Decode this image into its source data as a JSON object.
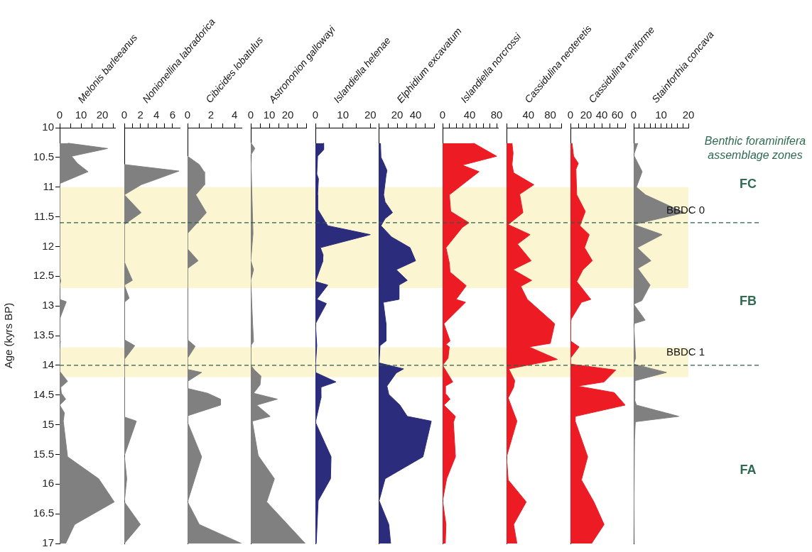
{
  "chart_data": [
    {
      "type": "area",
      "orientation": "horizontal",
      "title": "Melonis barleeanus",
      "ylabel": "Age (kyrs BP)",
      "color": "#808080",
      "x": [
        10.26,
        10.35,
        10.48,
        10.6,
        10.74,
        10.94,
        12.5,
        12.58,
        12.65,
        12.89,
        12.93,
        13.22,
        13.58,
        13.6,
        13.63,
        14.1,
        14.27,
        14.37,
        14.47,
        14.57,
        14.67,
        14.8,
        14.94,
        15.54,
        15.91,
        16.3,
        16.68,
        17.0
      ],
      "values": [
        3.9,
        22.5,
        5.6,
        8.3,
        13.3,
        0,
        0,
        0.5,
        0,
        0,
        3.1,
        0,
        0,
        0.4,
        0,
        0,
        3.7,
        0.5,
        0.8,
        2.8,
        0,
        2.2,
        1.7,
        3.7,
        18.3,
        25.6,
        7,
        2.8
      ],
      "xlim": [
        0,
        26
      ],
      "xticks": [
        0,
        {
          "value": 5,
          "label": null
        },
        10,
        {
          "value": 15,
          "label": null
        },
        20,
        {
          "value": 25,
          "label": null
        }
      ],
      "ylim": [
        17,
        10
      ],
      "yticks": [
        10,
        10.5,
        11,
        11.5,
        12,
        12.5,
        13,
        13.5,
        14,
        14.5,
        15,
        15.5,
        16,
        16.5,
        17
      ],
      "bands": [
        {
          "axis": "y",
          "from": 11,
          "to": 12.7,
          "color": "#fcf5d2"
        },
        {
          "axis": "y",
          "from": 13.7,
          "to": 14.2,
          "color": "#fcf5d2"
        }
      ],
      "ref_lines": [
        {
          "axis": "y",
          "value": 11.6,
          "color": "#2e5e4e",
          "line_style": "dashed"
        },
        {
          "axis": "y",
          "value": 14,
          "color": "#2e5e4e",
          "line_style": "dashed"
        }
      ]
    },
    {
      "type": "area",
      "orientation": "horizontal",
      "title": "Nonionellina labradorica",
      "color": "#808080",
      "tick_labels": "x",
      "x": [
        10.62,
        10.73,
        10.96,
        11.13,
        11.43,
        11.63,
        12.26,
        12.57,
        12.65,
        12.87,
        12.94,
        13.57,
        13.67,
        13.9,
        14.87,
        14.94,
        15.52,
        15.91,
        16.3,
        16.68,
        17.0
      ],
      "values": [
        0,
        6.8,
        2.1,
        0,
        2.1,
        0,
        0,
        1.0,
        0,
        0.6,
        0,
        0,
        1.3,
        0,
        0,
        1.5,
        0,
        0.3,
        0,
        2.0,
        0
      ],
      "xlim": [
        0,
        6.9
      ],
      "xticks": [
        0,
        {
          "value": 1,
          "label": null
        },
        2,
        {
          "value": 3,
          "label": null
        },
        4,
        {
          "value": 5,
          "label": null
        },
        6
      ],
      "ylim": [
        17,
        10
      ],
      "bands": [
        {
          "axis": "y",
          "from": 11,
          "to": 12.7,
          "color": "#fcf5d2"
        },
        {
          "axis": "y",
          "from": 13.7,
          "to": 14.2,
          "color": "#fcf5d2"
        }
      ],
      "ref_lines": [
        {
          "axis": "y",
          "value": 11.6,
          "color": "#2e5e4e",
          "line_style": "dashed"
        },
        {
          "axis": "y",
          "value": 14,
          "color": "#2e5e4e",
          "line_style": "dashed"
        }
      ]
    },
    {
      "type": "area",
      "orientation": "horizontal",
      "title": "Cibicides lobatulus",
      "color": "#808080",
      "tick_labels": "x",
      "x": [
        10.48,
        10.62,
        10.74,
        10.96,
        11.13,
        11.43,
        11.78,
        12.04,
        12.24,
        12.37,
        13.57,
        13.68,
        13.88,
        14.07,
        14.12,
        14.27,
        14.39,
        14.47,
        14.57,
        14.67,
        14.85,
        14.96,
        15.54,
        16.3,
        16.68,
        17.0
      ],
      "values": [
        0,
        1.0,
        1.4,
        1.45,
        0.7,
        1.6,
        0,
        0,
        0.9,
        0,
        0,
        0.65,
        0,
        0,
        1.2,
        0,
        0,
        1.7,
        2.8,
        2.8,
        0,
        0,
        1.2,
        0,
        1.0,
        4.6
      ],
      "xlim": [
        0,
        4.6
      ],
      "xticks": [
        0,
        {
          "value": 1,
          "label": null
        },
        2,
        {
          "value": 3,
          "label": null
        },
        4
      ],
      "ylim": [
        17,
        10
      ],
      "bands": [
        {
          "axis": "y",
          "from": 11,
          "to": 12.7,
          "color": "#fcf5d2"
        },
        {
          "axis": "y",
          "from": 13.7,
          "to": 14.2,
          "color": "#fcf5d2"
        }
      ],
      "ref_lines": [
        {
          "axis": "y",
          "value": 11.6,
          "color": "#2e5e4e",
          "line_style": "dashed"
        },
        {
          "axis": "y",
          "value": 14,
          "color": "#2e5e4e",
          "line_style": "dashed"
        }
      ]
    },
    {
      "type": "area",
      "orientation": "horizontal",
      "title": "Astrononion gallowayi",
      "color": "#808080",
      "tick_labels": "x",
      "x": [
        10.25,
        10.35,
        10.46,
        11.78,
        12.24,
        12.39,
        12.57,
        13.3,
        13.6,
        13.67,
        14.0,
        14.08,
        14.18,
        14.33,
        14.47,
        14.57,
        14.67,
        14.86,
        14.94,
        15.52,
        15.91,
        16.3,
        17.0
      ],
      "values": [
        0,
        2.2,
        0,
        1.2,
        0,
        1.5,
        0,
        1,
        1.5,
        0,
        0,
        2,
        5.5,
        5,
        1.5,
        14.4,
        3.2,
        10.5,
        0.8,
        4,
        12.8,
        8.6,
        29.5
      ],
      "xlim": [
        0,
        30
      ],
      "xticks": [
        0,
        {
          "value": 5,
          "label": null
        },
        10,
        {
          "value": 15,
          "label": null
        },
        20,
        {
          "value": 25,
          "label": null
        },
        {
          "value": 30,
          "label": null
        }
      ],
      "ylim": [
        17,
        10
      ],
      "bands": [
        {
          "axis": "y",
          "from": 11,
          "to": 12.7,
          "color": "#fcf5d2"
        },
        {
          "axis": "y",
          "from": 13.7,
          "to": 14.2,
          "color": "#fcf5d2"
        }
      ],
      "ref_lines": [
        {
          "axis": "y",
          "value": 11.6,
          "color": "#2e5e4e",
          "line_style": "dashed"
        },
        {
          "axis": "y",
          "value": 14,
          "color": "#2e5e4e",
          "line_style": "dashed"
        }
      ]
    },
    {
      "type": "area",
      "orientation": "horizontal",
      "title": "Islandiella helenae",
      "color": "#2b2d7c",
      "tick_labels": "x",
      "x": [
        10.26,
        10.37,
        10.48,
        10.78,
        10.86,
        11.13,
        11.37,
        11.57,
        11.65,
        11.8,
        12.02,
        12.14,
        12.26,
        12.59,
        12.65,
        12.89,
        12.96,
        13.3,
        13.67,
        14.0,
        14.12,
        14.28,
        14.37,
        14.55,
        14.96,
        15.54,
        15.91,
        16.28,
        17.0
      ],
      "values": [
        3.0,
        3.0,
        0.8,
        0.5,
        1.1,
        0.8,
        0.8,
        3.4,
        4.5,
        20,
        1.8,
        2.8,
        2.6,
        0,
        4.5,
        0.5,
        4,
        0,
        0.5,
        0,
        0,
        7.5,
        1.9,
        2,
        0,
        5.7,
        5.5,
        1,
        0.3
      ],
      "xlim": [
        0,
        22
      ],
      "xticks": [
        0,
        {
          "value": 5,
          "label": null
        },
        10,
        {
          "value": 15,
          "label": null
        },
        20
      ],
      "ylim": [
        17,
        10
      ],
      "bands": [
        {
          "axis": "y",
          "from": 11,
          "to": 12.7,
          "color": "#fcf5d2"
        },
        {
          "axis": "y",
          "from": 13.7,
          "to": 14.2,
          "color": "#fcf5d2"
        }
      ],
      "ref_lines": [
        {
          "axis": "y",
          "value": 11.6,
          "color": "#2e5e4e",
          "line_style": "dashed"
        },
        {
          "axis": "y",
          "value": 14,
          "color": "#2e5e4e",
          "line_style": "dashed"
        }
      ]
    },
    {
      "type": "area",
      "orientation": "horizontal",
      "title": "Elphidium excavatum",
      "color": "#2b2d7c",
      "tick_labels": "x",
      "x": [
        10.26,
        10.5,
        10.58,
        10.72,
        10.8,
        11.13,
        11.25,
        11.43,
        11.53,
        11.65,
        11.84,
        12.02,
        12.24,
        12.39,
        12.57,
        12.65,
        12.89,
        12.94,
        13.3,
        13.59,
        13.67,
        13.96,
        14.06,
        14.13,
        14.35,
        14.49,
        14.67,
        14.86,
        14.94,
        15.54,
        15.91,
        16.28,
        16.68,
        17.0
      ],
      "values": [
        2,
        2.5,
        5.1,
        9,
        8,
        5.4,
        7,
        15,
        7,
        2.5,
        14,
        34,
        40,
        19,
        31,
        22,
        22,
        5,
        8,
        8,
        1.5,
        0.5,
        27,
        19,
        9,
        11,
        23,
        31,
        57,
        48,
        7,
        0.5,
        11,
        13
      ],
      "xlim": [
        0,
        60
      ],
      "xticks": [
        {
          "value": 0,
          "label": null
        },
        {
          "value": 10,
          "label": null
        },
        20,
        {
          "value": 30,
          "label": null
        },
        40,
        {
          "value": 50,
          "label": null
        },
        {
          "value": 60,
          "label": null
        }
      ],
      "ylim": [
        17,
        10
      ],
      "bands": [
        {
          "axis": "y",
          "from": 11,
          "to": 12.7,
          "color": "#fcf5d2"
        },
        {
          "axis": "y",
          "from": 13.7,
          "to": 14.2,
          "color": "#fcf5d2"
        }
      ],
      "ref_lines": [
        {
          "axis": "y",
          "value": 11.6,
          "color": "#2e5e4e",
          "line_style": "dashed"
        },
        {
          "axis": "y",
          "value": 14,
          "color": "#2e5e4e",
          "line_style": "dashed"
        }
      ]
    },
    {
      "type": "area",
      "orientation": "horizontal",
      "title": "Islandiella norcrossi",
      "color": "#ed1c24",
      "tick_labels": "x",
      "x": [
        10.26,
        10.48,
        10.63,
        10.74,
        11.13,
        11.41,
        11.6,
        11.68,
        12.02,
        12.28,
        12.43,
        12.66,
        12.89,
        12.94,
        13.3,
        13.59,
        13.65,
        13.69,
        13.88,
        14.0,
        14.28,
        14.35,
        14.47,
        14.57,
        14.67,
        14.86,
        14.96,
        15.54,
        15.91,
        16.28,
        16.68,
        17.0
      ],
      "values": [
        46,
        80,
        29,
        54,
        10,
        12,
        39,
        29,
        5,
        10,
        11,
        35,
        20,
        34,
        2,
        11,
        5,
        10,
        8,
        0,
        15,
        4,
        4,
        11,
        2,
        19,
        16,
        19,
        6,
        0,
        5,
        4
      ],
      "xlim": [
        0,
        82
      ],
      "xticks": [
        0,
        {
          "value": 10,
          "label": null
        },
        {
          "value": 20,
          "label": null
        },
        {
          "value": 30,
          "label": null
        },
        40,
        {
          "value": 50,
          "label": null
        },
        {
          "value": 60,
          "label": null
        },
        {
          "value": 70,
          "label": null
        },
        80
      ],
      "ylim": [
        17,
        10
      ],
      "bands": [
        {
          "axis": "y",
          "from": 11,
          "to": 12.7,
          "color": "#fcf5d2"
        },
        {
          "axis": "y",
          "from": 13.7,
          "to": 14.2,
          "color": "#fcf5d2"
        }
      ],
      "ref_lines": [
        {
          "axis": "y",
          "value": 11.6,
          "color": "#2e5e4e",
          "line_style": "dashed"
        },
        {
          "axis": "y",
          "value": 14,
          "color": "#2e5e4e",
          "line_style": "dashed"
        }
      ]
    },
    {
      "type": "area",
      "orientation": "horizontal",
      "title": "Cassidulina neoteretis",
      "color": "#ed1c24",
      "tick_labels": "x",
      "x": [
        10.26,
        10.43,
        10.62,
        10.76,
        10.96,
        11.12,
        11.43,
        11.63,
        11.8,
        11.96,
        12.24,
        12.39,
        12.57,
        12.67,
        12.89,
        13.3,
        13.63,
        13.69,
        13.9,
        14.06,
        14.26,
        14.37,
        14.55,
        14.94,
        15.54,
        15.93,
        16.3,
        16.68,
        17.0
      ],
      "values": [
        10,
        12,
        10,
        13,
        50,
        24,
        30,
        3,
        43,
        20,
        45,
        12,
        46,
        26,
        38,
        88,
        80,
        41,
        93,
        4,
        15,
        13,
        3,
        19,
        0,
        3,
        36,
        13,
        19
      ],
      "xlim": [
        0,
        100
      ],
      "xticks": [
        {
          "value": 0,
          "label": null
        },
        {
          "value": 20,
          "label": null
        },
        40,
        {
          "value": 60,
          "label": null
        },
        80,
        {
          "value": 100,
          "label": null
        }
      ],
      "ylim": [
        17,
        10
      ],
      "bands": [
        {
          "axis": "y",
          "from": 11,
          "to": 12.7,
          "color": "#fcf5d2"
        },
        {
          "axis": "y",
          "from": 13.7,
          "to": 14.2,
          "color": "#fcf5d2"
        }
      ],
      "ref_lines": [
        {
          "axis": "y",
          "value": 11.6,
          "color": "#2e5e4e",
          "line_style": "dashed"
        },
        {
          "axis": "y",
          "value": 14,
          "color": "#2e5e4e",
          "line_style": "dashed"
        }
      ]
    },
    {
      "type": "area",
      "orientation": "horizontal",
      "title": "Cassidulina reniforme",
      "color": "#ed1c24",
      "tick_labels": "x",
      "x": [
        10.26,
        10.48,
        10.6,
        10.7,
        11.13,
        11.41,
        11.65,
        11.8,
        12.02,
        12.24,
        12.39,
        12.59,
        12.89,
        12.94,
        13.22,
        13.3,
        13.59,
        13.69,
        13.88,
        13.98,
        14.08,
        14.28,
        14.35,
        14.46,
        14.67,
        14.86,
        14.94,
        15.54,
        15.93,
        16.3,
        16.68,
        17.0
      ],
      "values": [
        2,
        4,
        10,
        7,
        8,
        19,
        12,
        24,
        18,
        28,
        16,
        8,
        26,
        14,
        1,
        0,
        0,
        11,
        0,
        0,
        58,
        43,
        9,
        56,
        70,
        6,
        6,
        22,
        14,
        30,
        43,
        27
      ],
      "xlim": [
        0,
        70
      ],
      "xticks": [
        0,
        {
          "value": 10,
          "label": null
        },
        20,
        {
          "value": 30,
          "label": null
        },
        40,
        {
          "value": 50,
          "label": null
        },
        60,
        {
          "value": 70,
          "label": null
        }
      ],
      "ylim": [
        17,
        10
      ],
      "bands": [
        {
          "axis": "y",
          "from": 11,
          "to": 12.7,
          "color": "#fcf5d2"
        },
        {
          "axis": "y",
          "from": 13.7,
          "to": 14.2,
          "color": "#fcf5d2"
        }
      ],
      "ref_lines": [
        {
          "axis": "y",
          "value": 11.6,
          "color": "#2e5e4e",
          "line_style": "dashed"
        },
        {
          "axis": "y",
          "value": 14,
          "color": "#2e5e4e",
          "line_style": "dashed"
        }
      ]
    },
    {
      "type": "area",
      "orientation": "horizontal",
      "title": "Stainforthia concava",
      "color": "#808080",
      "tick_labels": "x",
      "x": [
        10.26,
        10.46,
        10.74,
        11.0,
        11.13,
        11.43,
        11.63,
        11.8,
        12.02,
        12.24,
        12.37,
        12.65,
        12.91,
        12.97,
        13.24,
        13.3,
        13.88,
        13.98,
        14.12,
        14.26,
        14.37,
        14.59,
        14.67,
        14.86,
        14.95,
        15.26,
        17.0
      ],
      "values": [
        1.5,
        0,
        3.1,
        1.0,
        4.3,
        18.5,
        0,
        10.4,
        1.3,
        6.3,
        1.5,
        6,
        3,
        0,
        4.2,
        0,
        0.7,
        0,
        12,
        0.5,
        0.5,
        0.3,
        1,
        16.5,
        0.6,
        0.3,
        0
      ],
      "xlim": [
        0,
        20
      ],
      "xticks": [
        0,
        {
          "value": 2,
          "label": null
        },
        {
          "value": 4,
          "label": null
        },
        {
          "value": 6,
          "label": null
        },
        {
          "value": 8,
          "label": null
        },
        10,
        {
          "value": 12,
          "label": null
        },
        {
          "value": 14,
          "label": null
        },
        {
          "value": 16,
          "label": null
        },
        {
          "value": 18,
          "label": null
        },
        20
      ],
      "ylim": [
        17,
        10
      ],
      "bands": [
        {
          "axis": "y",
          "from": 11,
          "to": 12.7,
          "color": "#fcf5d2"
        },
        {
          "axis": "y",
          "from": 13.7,
          "to": 14.2,
          "color": "#fcf5d2"
        }
      ],
      "ref_lines": [
        {
          "axis": "y",
          "value": 11.6,
          "label": "BBDC 0",
          "color": "#2e5e4e",
          "line_style": "dashed"
        },
        {
          "axis": "y",
          "value": 14,
          "label": "BBDC 1",
          "color": "#2e5e4e",
          "line_style": "dashed"
        }
      ],
      "annotations": [
        "Benthic foraminifera assemblage zones",
        "FC",
        "FB",
        "FA"
      ]
    }
  ]
}
